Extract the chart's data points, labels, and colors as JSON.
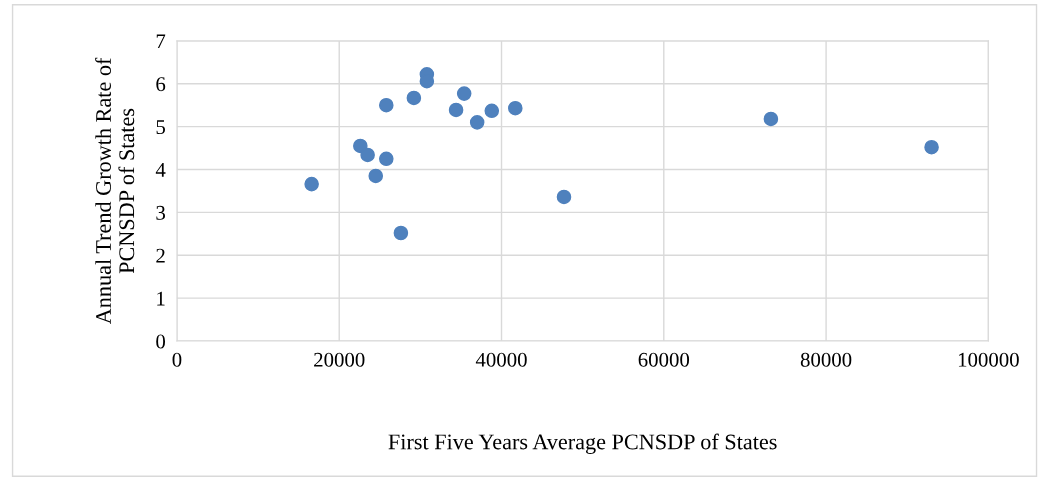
{
  "chart_data": {
    "type": "scatter",
    "xlabel": "First Five Years Average PCNSDP of States",
    "ylabel": "Annual Trend Growth Rate of\nPCNSDP of States",
    "x": [
      16600,
      22600,
      23500,
      24500,
      25800,
      25800,
      27600,
      29200,
      30800,
      30800,
      34400,
      35400,
      37000,
      38800,
      41700,
      47700,
      73200,
      93000
    ],
    "series": [
      {
        "color": "#4f81bd",
        "values": [
          3.66,
          4.55,
          4.34,
          3.85,
          4.25,
          5.5,
          2.52,
          5.67,
          6.22,
          6.06,
          5.39,
          5.77,
          5.1,
          5.37,
          5.43,
          3.36,
          5.18,
          4.52
        ]
      }
    ],
    "xlim": [
      0,
      100000
    ],
    "xticks": [
      0,
      20000,
      40000,
      60000,
      80000,
      100000
    ],
    "ylim": [
      0,
      7
    ],
    "yticks": [
      0,
      1,
      2,
      3,
      4,
      5,
      6,
      7
    ],
    "grid": true,
    "marker": "circle",
    "legend": false
  }
}
